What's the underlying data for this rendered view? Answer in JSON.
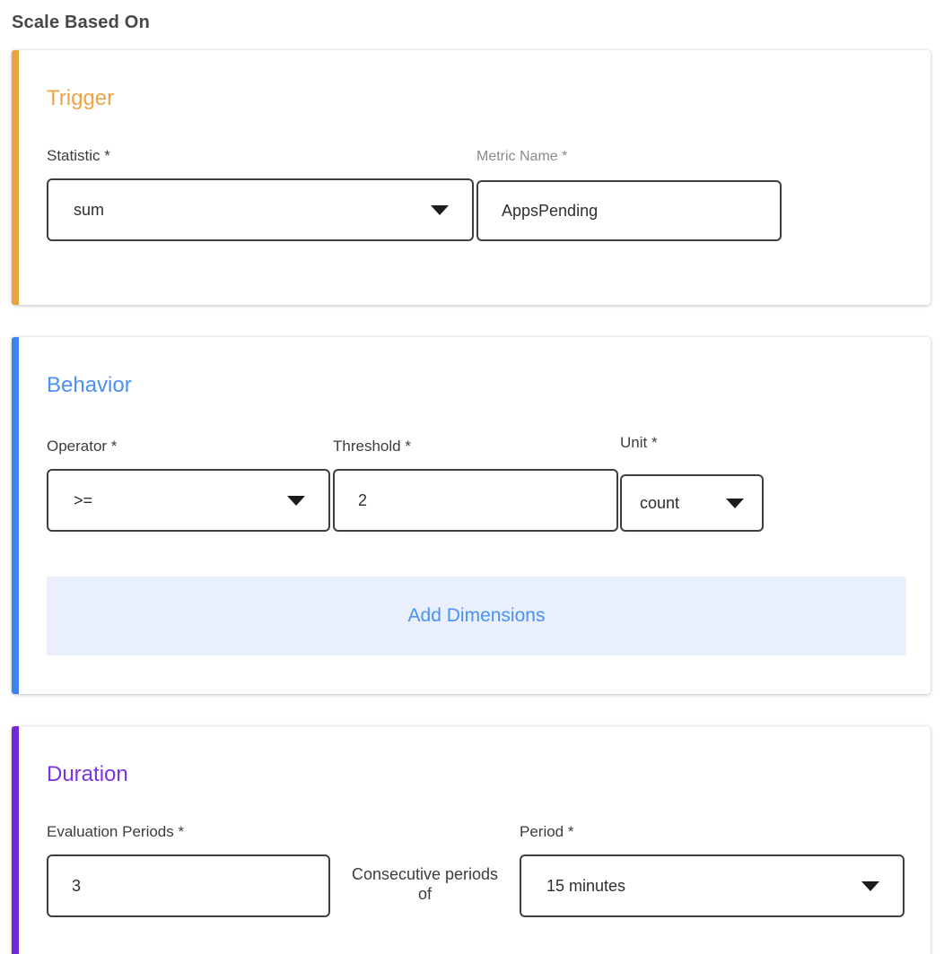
{
  "page": {
    "title": "Scale Based On"
  },
  "colors": {
    "trigger_accent": "#e8a33d",
    "behavior_accent": "#3c82f2",
    "duration_accent": "#7127d8",
    "add_dimensions_bg": "#e9effc",
    "add_dimensions_text": "#4a90f5",
    "input_border": "#3f3f3f",
    "label_text": "#3d3d3d",
    "muted_label_text": "#8a8a8a"
  },
  "trigger": {
    "heading": "Trigger",
    "statistic": {
      "label": "Statistic *",
      "value": "sum"
    },
    "metric_name": {
      "label": "Metric Name *",
      "value": "AppsPending"
    }
  },
  "behavior": {
    "heading": "Behavior",
    "operator": {
      "label": "Operator *",
      "value": ">="
    },
    "threshold": {
      "label": "Threshold *",
      "value": "2"
    },
    "unit": {
      "label": "Unit *",
      "value": "count"
    },
    "add_dimensions_label": "Add Dimensions"
  },
  "duration": {
    "heading": "Duration",
    "evaluation_periods": {
      "label": "Evaluation Periods *",
      "value": "3"
    },
    "connector_text": "Consecutive periods of",
    "period": {
      "label": "Period *",
      "value": "15 minutes"
    }
  }
}
